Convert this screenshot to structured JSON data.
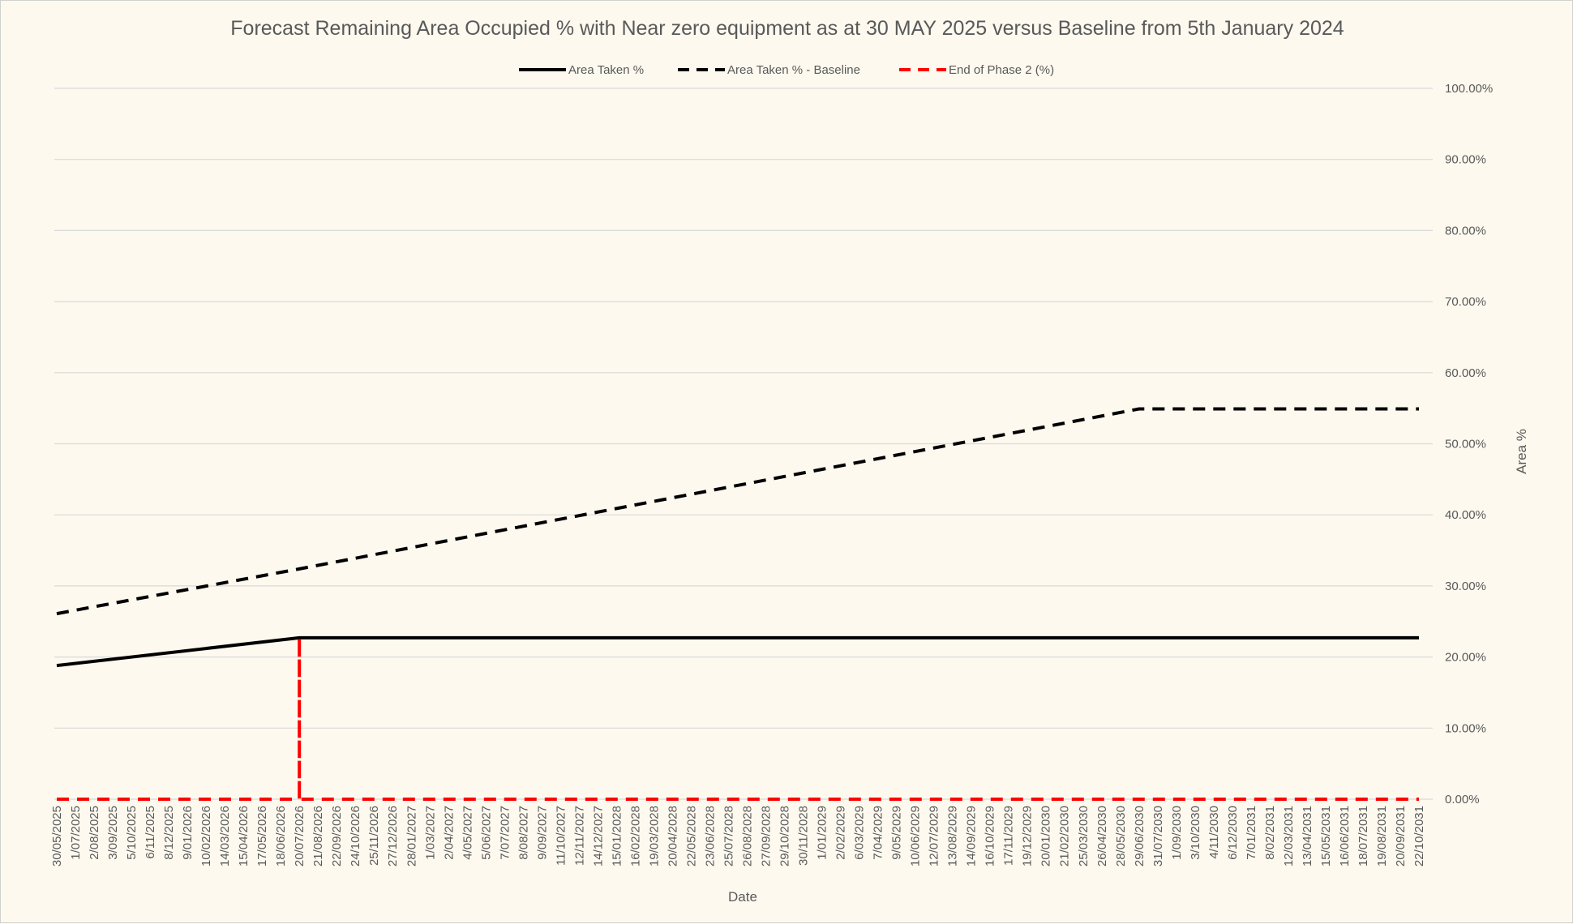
{
  "chart_data": {
    "type": "line",
    "title": "Forecast Remaining Area Occupied % with Near zero equipment as at 30 MAY 2025 versus Baseline from 5th January 2024",
    "xlabel": "Date",
    "ylabel": "Area %",
    "ylim": [
      0,
      100
    ],
    "y_axis_position": "right",
    "y_ticks": [
      "0.00%",
      "10.00%",
      "20.00%",
      "30.00%",
      "40.00%",
      "50.00%",
      "60.00%",
      "70.00%",
      "80.00%",
      "90.00%",
      "100.00%"
    ],
    "grid": true,
    "legend_position": "top",
    "x_tick_labels": [
      "30/05/2025",
      "1/07/2025",
      "2/08/2025",
      "3/09/2025",
      "5/10/2025",
      "6/11/2025",
      "8/12/2025",
      "9/01/2026",
      "10/02/2026",
      "14/03/2026",
      "15/04/2026",
      "17/05/2026",
      "18/06/2026",
      "20/07/2026",
      "21/08/2026",
      "22/09/2026",
      "24/10/2026",
      "25/11/2026",
      "27/12/2026",
      "28/01/2027",
      "1/03/2027",
      "2/04/2027",
      "4/05/2027",
      "5/06/2027",
      "7/07/2027",
      "8/08/2027",
      "9/09/2027",
      "11/10/2027",
      "12/11/2027",
      "14/12/2027",
      "15/01/2028",
      "16/02/2028",
      "19/03/2028",
      "20/04/2028",
      "22/05/2028",
      "23/06/2028",
      "25/07/2028",
      "26/08/2028",
      "27/09/2028",
      "29/10/2028",
      "30/11/2028",
      "1/01/2029",
      "2/02/2029",
      "6/03/2029",
      "7/04/2029",
      "9/05/2029",
      "10/06/2029",
      "12/07/2029",
      "13/08/2029",
      "14/09/2029",
      "16/10/2029",
      "17/11/2029",
      "19/12/2029",
      "20/01/2030",
      "21/02/2030",
      "25/03/2030",
      "26/04/2030",
      "28/05/2030",
      "29/06/2030",
      "31/07/2030",
      "1/09/2030",
      "3/10/2030",
      "4/11/2030",
      "6/12/2030",
      "7/01/2031",
      "8/02/2031",
      "12/03/2031",
      "13/04/2031",
      "15/05/2031",
      "16/06/2031",
      "18/07/2031",
      "19/08/2031",
      "20/09/2031",
      "22/10/2031"
    ],
    "series": [
      {
        "name": "Area Taken %",
        "style": "solid",
        "color": "#000000",
        "points": [
          {
            "x": "30/05/2025",
            "y": 18.8
          },
          {
            "x": "20/07/2026",
            "y": 22.7
          },
          {
            "x": "22/10/2031",
            "y": 22.7
          }
        ]
      },
      {
        "name": "Area Taken % - Baseline",
        "style": "dashed",
        "color": "#000000",
        "points": [
          {
            "x": "30/05/2025",
            "y": 26.1
          },
          {
            "x": "20/07/2026",
            "y": 32.4
          },
          {
            "x": "29/06/2030",
            "y": 54.9
          },
          {
            "x": "22/10/2031",
            "y": 54.9
          }
        ]
      },
      {
        "name": "End of Phase 2 (%)",
        "style": "dashed",
        "color": "#ff0000",
        "points": [
          {
            "x": "30/05/2025",
            "y": 0
          },
          {
            "x": "20/07/2026",
            "y": 0
          },
          {
            "x": "20/07/2026",
            "y": 22.7
          },
          {
            "x": "20/07/2026",
            "y": 0
          },
          {
            "x": "22/10/2031",
            "y": 0
          }
        ]
      }
    ]
  }
}
